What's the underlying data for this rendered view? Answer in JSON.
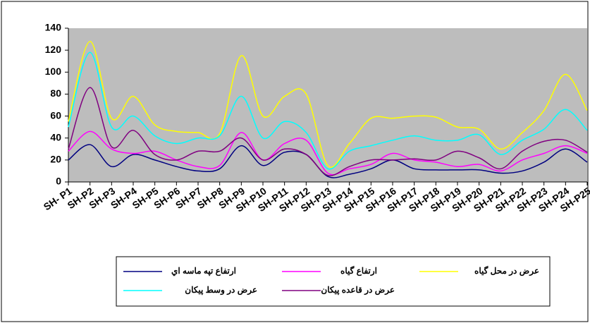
{
  "chart_data": {
    "type": "line",
    "categories": [
      "SH- P1",
      "SH-P2",
      "SH-P3",
      "SH-P4",
      "SH-P5",
      "SH-P6",
      "SH-P7",
      "SH-P8",
      "SH-P9",
      "SH-P10",
      "SH-P11",
      "SH-P12",
      "SH-P13",
      "SH-P14",
      "SH-P15",
      "SH-P16",
      "SH-P17",
      "SH-P18",
      "SH-P19",
      "SH-P20",
      "SH-P21",
      "SH-P22",
      "SH-P23",
      "SH-P24",
      "SH-P25"
    ],
    "series": [
      {
        "name": "ارتفاع تپه ماسه اي",
        "color": "#000080",
        "values": [
          20,
          34,
          14,
          25,
          20,
          14,
          10,
          12,
          33,
          15,
          27,
          25,
          5,
          7,
          12,
          20,
          12,
          11,
          11,
          11,
          8,
          10,
          18,
          30,
          18
        ]
      },
      {
        "name": "ارتفاع  گیاه",
        "color": "#ff00ff",
        "values": [
          28,
          46,
          30,
          26,
          28,
          20,
          14,
          15,
          45,
          20,
          35,
          38,
          8,
          12,
          16,
          26,
          20,
          18,
          14,
          16,
          10,
          20,
          26,
          33,
          26
        ]
      },
      {
        "name": "عرض در محل گیاه",
        "color": "#ffff00",
        "values": [
          55,
          128,
          58,
          78,
          52,
          46,
          45,
          44,
          115,
          60,
          78,
          80,
          15,
          35,
          58,
          58,
          60,
          59,
          50,
          48,
          30,
          45,
          65,
          98,
          65
        ]
      },
      {
        "name": "عرض در وسط پیکان",
        "color": "#00ffff",
        "values": [
          50,
          118,
          50,
          60,
          42,
          35,
          40,
          42,
          78,
          40,
          55,
          45,
          12,
          28,
          33,
          38,
          42,
          38,
          38,
          43,
          25,
          38,
          48,
          66,
          47
        ]
      },
      {
        "name": "عرض در قاعده پیکان",
        "color": "#800080",
        "values": [
          30,
          86,
          32,
          47,
          25,
          20,
          28,
          28,
          40,
          20,
          30,
          25,
          6,
          14,
          20,
          20,
          21,
          20,
          28,
          22,
          12,
          28,
          37,
          38,
          27
        ]
      }
    ],
    "ylim": [
      0,
      140
    ],
    "yticks": [
      0,
      20,
      40,
      60,
      80,
      100,
      120,
      140
    ],
    "grid": false
  }
}
